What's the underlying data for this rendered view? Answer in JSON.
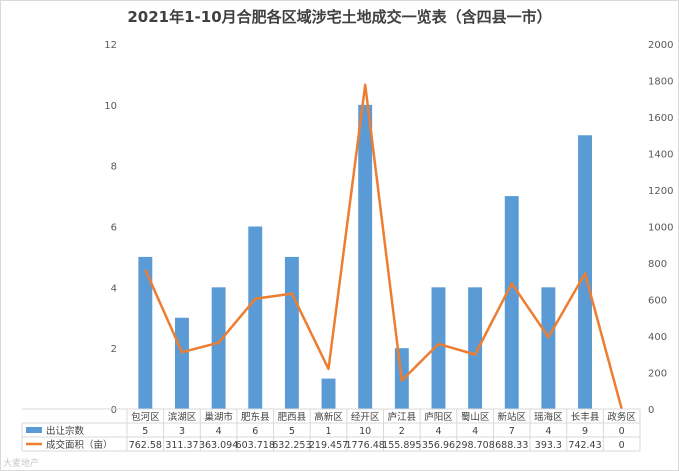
{
  "chart_data": {
    "type": "bar",
    "title": "2021年1-10月合肥各区域涉宅土地成交一览表（含四县一市）",
    "categories": [
      "包河区",
      "滨湖区",
      "巢湖市",
      "肥东县",
      "肥西县",
      "高新区",
      "经开区",
      "庐江县",
      "庐阳区",
      "蜀山区",
      "新站区",
      "瑶海区",
      "长丰县",
      "政务区"
    ],
    "series": [
      {
        "name": "出让宗数",
        "type": "bar",
        "axis": "left",
        "color": "#5b9bd5",
        "values": [
          5,
          3,
          4,
          6,
          5,
          1,
          10,
          2,
          4,
          4,
          7,
          4,
          9,
          0
        ],
        "labels": [
          "5",
          "3",
          "4",
          "6",
          "5",
          "1",
          "10",
          "2",
          "4",
          "4",
          "7",
          "4",
          "9",
          "0"
        ]
      },
      {
        "name": "成交面积（亩）",
        "type": "line",
        "axis": "right",
        "color": "#ed7d31",
        "values": [
          762.58,
          311.37,
          363.094,
          603.718,
          632.253,
          219.457,
          1776.48,
          155.895,
          356.96,
          298.708,
          688.33,
          393.3,
          742.43,
          0
        ],
        "labels": [
          "762.58",
          "311.37",
          "363.094",
          "603.718",
          "632.253",
          "219.457",
          "1776.48",
          "155.895",
          "356.96",
          "298.708",
          "688.33",
          "393.3",
          "742.43",
          "0"
        ]
      }
    ],
    "y_left": {
      "ylim": [
        0,
        12
      ],
      "ticks": [
        "0",
        "2",
        "4",
        "6",
        "8",
        "10",
        "12"
      ]
    },
    "y_right": {
      "ylim": [
        0,
        2000
      ],
      "ticks": [
        "0",
        "200",
        "400",
        "600",
        "800",
        "1000",
        "1200",
        "1400",
        "1600",
        "1800",
        "2000"
      ]
    },
    "grid": false,
    "legend": "bottom-table"
  },
  "watermark": "大麦地产"
}
